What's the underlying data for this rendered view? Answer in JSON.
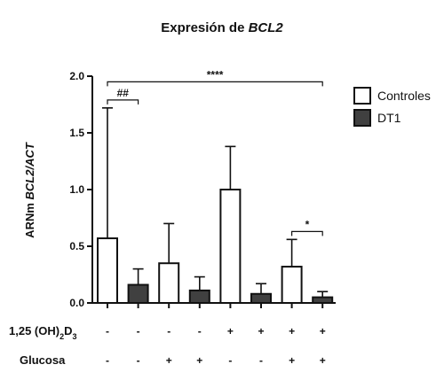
{
  "chart_data": {
    "type": "bar",
    "title_prefix": "Expresión de ",
    "title_gene": "BCL2",
    "ylabel_prefix": "ARNm ",
    "ylabel_gene": "BCL2/ACT",
    "ylim": [
      0,
      2.0
    ],
    "yticks": [
      "0.0",
      "0.5",
      "1.0",
      "1.5",
      "2.0"
    ],
    "series": [
      {
        "name": "Controles",
        "color": "#ffffff"
      },
      {
        "name": "DT1",
        "color": "#404040"
      }
    ],
    "bars": [
      {
        "series": "Controles",
        "value": 0.57,
        "error": 1.15
      },
      {
        "series": "DT1",
        "value": 0.16,
        "error": 0.14
      },
      {
        "series": "Controles",
        "value": 0.35,
        "error": 0.35
      },
      {
        "series": "DT1",
        "value": 0.11,
        "error": 0.12
      },
      {
        "series": "Controles",
        "value": 1.0,
        "error": 0.38
      },
      {
        "series": "DT1",
        "value": 0.08,
        "error": 0.09
      },
      {
        "series": "Controles",
        "value": 0.32,
        "error": 0.24
      },
      {
        "series": "DT1",
        "value": 0.05,
        "error": 0.05
      }
    ],
    "conditions": [
      {
        "label_main": "1,25 (OH)",
        "sub1": "2",
        "mid": "D",
        "sub2": "3",
        "values": [
          "-",
          "-",
          "-",
          "-",
          "+",
          "+",
          "+",
          "+"
        ]
      },
      {
        "label_main": "Glucosa",
        "values": [
          "-",
          "-",
          "+",
          "+",
          "-",
          "-",
          "+",
          "+"
        ]
      }
    ],
    "annotations": [
      {
        "text": "##",
        "from": 0,
        "to": 1,
        "y": 1.79
      },
      {
        "text": "****",
        "from": 0,
        "to": 7,
        "y": 1.95
      },
      {
        "text": "*",
        "from": 6,
        "to": 7,
        "y": 0.63
      }
    ]
  }
}
